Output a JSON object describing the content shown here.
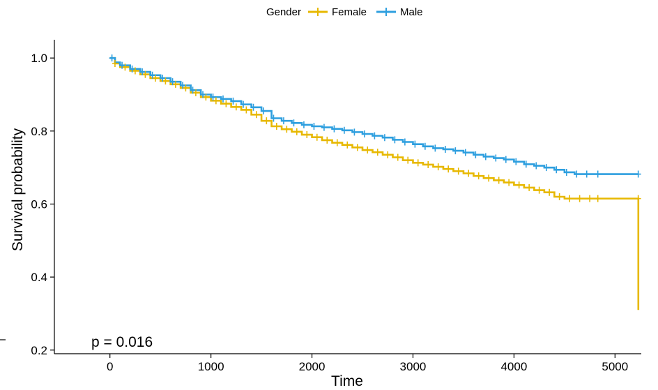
{
  "chart_data": {
    "type": "line",
    "subtype": "kaplan-meier",
    "title": "",
    "xlabel": "Time",
    "ylabel": "Survival probability",
    "xlim": [
      -550,
      5260
    ],
    "ylim": [
      0.19,
      1.05
    ],
    "x_ticks": [
      0,
      1000,
      2000,
      3000,
      4000,
      5000
    ],
    "y_ticks": [
      0.2,
      0.4,
      0.6,
      0.8,
      1.0
    ],
    "y_tick_labels": [
      "0.2",
      "0.4",
      "0.6",
      "0.8",
      "1.0"
    ],
    "grid": false,
    "legend": {
      "title": "Gender",
      "position": "top",
      "entries": [
        "Female",
        "Male"
      ]
    },
    "annotation": "p = 0.016",
    "series": [
      {
        "name": "Female",
        "color": "#E7B800",
        "x": [
          0,
          50,
          100,
          200,
          300,
          400,
          500,
          600,
          700,
          800,
          900,
          1000,
          1100,
          1200,
          1300,
          1400,
          1500,
          1600,
          1700,
          1800,
          1900,
          2000,
          2100,
          2200,
          2300,
          2400,
          2500,
          2600,
          2700,
          2800,
          2900,
          3000,
          3100,
          3200,
          3300,
          3400,
          3500,
          3600,
          3700,
          3800,
          3900,
          4000,
          4100,
          4200,
          4300,
          4400,
          4500,
          4600,
          4700,
          4850,
          5230,
          5231
        ],
        "y": [
          1.0,
          0.985,
          0.975,
          0.965,
          0.955,
          0.945,
          0.937,
          0.928,
          0.918,
          0.905,
          0.893,
          0.883,
          0.875,
          0.866,
          0.858,
          0.845,
          0.828,
          0.813,
          0.805,
          0.798,
          0.79,
          0.783,
          0.775,
          0.768,
          0.762,
          0.755,
          0.748,
          0.742,
          0.735,
          0.728,
          0.72,
          0.713,
          0.708,
          0.702,
          0.696,
          0.69,
          0.684,
          0.677,
          0.671,
          0.665,
          0.659,
          0.652,
          0.645,
          0.638,
          0.632,
          0.62,
          0.615,
          0.615,
          0.615,
          0.615,
          0.615,
          0.31
        ],
        "censor_x": [
          50,
          150,
          250,
          350,
          450,
          550,
          650,
          750,
          850,
          950,
          1050,
          1150,
          1250,
          1350,
          1450,
          1550,
          1650,
          1750,
          1850,
          1950,
          2050,
          2150,
          2250,
          2350,
          2450,
          2550,
          2650,
          2750,
          2850,
          2950,
          3050,
          3150,
          3250,
          3350,
          3450,
          3550,
          3650,
          3750,
          3850,
          3950,
          4050,
          4150,
          4250,
          4350,
          4450,
          4550,
          4650,
          4750,
          4830,
          5230
        ]
      },
      {
        "name": "Male",
        "color": "#2E9FDF",
        "x": [
          0,
          50,
          100,
          200,
          300,
          400,
          500,
          600,
          700,
          800,
          900,
          1000,
          1100,
          1200,
          1300,
          1400,
          1500,
          1600,
          1700,
          1800,
          1900,
          2000,
          2100,
          2200,
          2300,
          2400,
          2500,
          2600,
          2700,
          2800,
          2900,
          3000,
          3100,
          3200,
          3300,
          3400,
          3500,
          3600,
          3700,
          3800,
          3900,
          4000,
          4100,
          4200,
          4300,
          4400,
          4500,
          4600,
          4700,
          4850,
          5230
        ],
        "y": [
          1.0,
          0.988,
          0.98,
          0.97,
          0.962,
          0.953,
          0.945,
          0.935,
          0.925,
          0.912,
          0.9,
          0.893,
          0.888,
          0.882,
          0.873,
          0.865,
          0.855,
          0.835,
          0.828,
          0.822,
          0.817,
          0.813,
          0.81,
          0.806,
          0.802,
          0.797,
          0.792,
          0.787,
          0.782,
          0.776,
          0.77,
          0.764,
          0.758,
          0.753,
          0.75,
          0.746,
          0.741,
          0.735,
          0.73,
          0.726,
          0.722,
          0.716,
          0.709,
          0.705,
          0.7,
          0.694,
          0.687,
          0.682,
          0.682,
          0.682,
          0.682
        ],
        "censor_x": [
          20,
          120,
          220,
          320,
          420,
          520,
          620,
          720,
          820,
          920,
          1020,
          1120,
          1220,
          1320,
          1420,
          1520,
          1620,
          1720,
          1820,
          1920,
          2020,
          2120,
          2220,
          2320,
          2420,
          2520,
          2620,
          2720,
          2820,
          2920,
          3020,
          3120,
          3220,
          3320,
          3420,
          3520,
          3620,
          3720,
          3820,
          3920,
          4020,
          4120,
          4220,
          4320,
          4420,
          4520,
          4620,
          4720,
          4830,
          5230
        ]
      }
    ]
  }
}
